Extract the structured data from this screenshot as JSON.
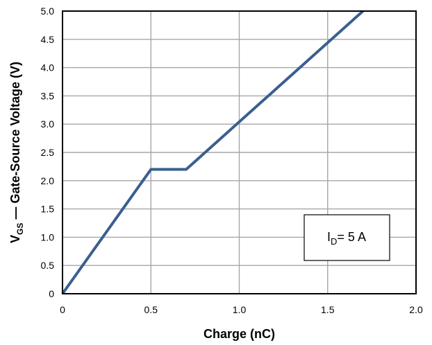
{
  "chart_data": {
    "type": "line",
    "title": "",
    "xlabel": "Charge (nC)",
    "ylabel_main": "V",
    "ylabel_sub": "GS",
    "ylabel_rest": " — Gate-Source Voltage (V)",
    "xlim": [
      0,
      2.0
    ],
    "ylim": [
      0,
      5.0
    ],
    "x_ticks": [
      0,
      0.5,
      1.0,
      1.5,
      2.0
    ],
    "x_tick_labels": [
      "0",
      "0.5",
      "1.0",
      "1.5",
      "2.0"
    ],
    "y_ticks": [
      0,
      0.5,
      1.0,
      1.5,
      2.0,
      2.5,
      3.0,
      3.5,
      4.0,
      4.5,
      5.0
    ],
    "y_tick_labels": [
      "0",
      "0.5",
      "1.0",
      "1.5",
      "2.0",
      "2.5",
      "3.0",
      "3.5",
      "4.0",
      "4.5",
      "5.0"
    ],
    "grid": true,
    "series": [
      {
        "x": [
          0,
          0.5,
          0.7,
          1.7
        ],
        "y": [
          0,
          2.2,
          2.2,
          5.0
        ]
      }
    ],
    "annotation": {
      "main": "I",
      "sub": "D",
      "rest": "= 5 A"
    },
    "colors": {
      "line": "#3a5f8f",
      "grid": "#a6a6a6",
      "frame": "#000000"
    }
  }
}
